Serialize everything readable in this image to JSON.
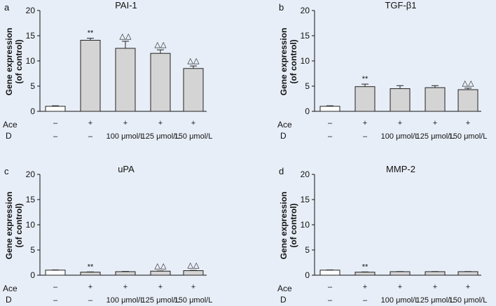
{
  "chart_data": [
    {
      "type": "bar",
      "panel": "a",
      "title": "PAI-1",
      "ylabel_lines": [
        "Gene expression",
        "(of control)"
      ],
      "ylim": [
        0,
        20
      ],
      "yticks": [
        "0",
        "5",
        "10",
        "15",
        "20"
      ],
      "values": [
        1.0,
        14.1,
        12.5,
        11.5,
        8.5
      ],
      "errors": [
        0.1,
        0.4,
        1.4,
        0.7,
        0.5
      ],
      "annotations": [
        "",
        "**",
        "△△",
        "△△",
        "△△"
      ],
      "conditions": {
        "ace_label": "Ace",
        "d_label": "D",
        "ace": [
          "–",
          "+",
          "+",
          "+",
          "+"
        ],
        "d": [
          "–",
          "–",
          "100 μmol/L",
          "125 μmol/L",
          "150 μmol/L"
        ]
      },
      "colors": {
        "control": "#ffffff",
        "treated": "#d4d4d4"
      }
    },
    {
      "type": "bar",
      "panel": "b",
      "title": "TGF-β1",
      "ylabel_lines": [
        "Gene expression",
        "(of control)"
      ],
      "ylim": [
        0,
        20
      ],
      "yticks": [
        "0",
        "5",
        "10",
        "15",
        "20"
      ],
      "values": [
        1.0,
        4.9,
        4.5,
        4.7,
        4.3
      ],
      "errors": [
        0.1,
        0.5,
        0.6,
        0.4,
        0.3
      ],
      "annotations": [
        "",
        "**",
        "",
        "",
        "△△"
      ],
      "conditions": {
        "ace_label": "Ace",
        "d_label": "D",
        "ace": [
          "–",
          "+",
          "+",
          "+",
          "+"
        ],
        "d": [
          "–",
          "–",
          "100 μmol/L",
          "125 μmol/L",
          "150 μmol/L"
        ]
      },
      "colors": {
        "control": "#ffffff",
        "treated": "#d4d4d4"
      }
    },
    {
      "type": "bar",
      "panel": "c",
      "title": "uPA",
      "ylabel_lines": [
        "Gene expression",
        "(of control)"
      ],
      "ylim": [
        0,
        20
      ],
      "yticks": [
        "0",
        "5",
        "10",
        "15",
        "20"
      ],
      "values": [
        1.0,
        0.6,
        0.7,
        0.8,
        0.9
      ],
      "errors": [
        0.05,
        0.05,
        0.05,
        0.05,
        0.05
      ],
      "annotations": [
        "",
        "**",
        "",
        "△△",
        "△△"
      ],
      "conditions": {
        "ace_label": "Ace",
        "d_label": "D",
        "ace": [
          "–",
          "+",
          "+",
          "+",
          "+"
        ],
        "d": [
          "–",
          "–",
          "100 μmol/L",
          "125 μmol/L",
          "150 μmol/L"
        ]
      },
      "colors": {
        "control": "#ffffff",
        "treated": "#d4d4d4"
      }
    },
    {
      "type": "bar",
      "panel": "d",
      "title": "MMP-2",
      "ylabel_lines": [
        "Gene expression",
        "(of control)"
      ],
      "ylim": [
        0,
        20
      ],
      "yticks": [
        "0",
        "5",
        "10",
        "15",
        "20"
      ],
      "values": [
        1.0,
        0.6,
        0.7,
        0.7,
        0.7
      ],
      "errors": [
        0.05,
        0.05,
        0.03,
        0.03,
        0.03
      ],
      "annotations": [
        "",
        "**",
        "",
        "",
        ""
      ],
      "conditions": {
        "ace_label": "Ace",
        "d_label": "D",
        "ace": [
          "–",
          "+",
          "+",
          "+",
          "+"
        ],
        "d": [
          "–",
          "–",
          "100 μmol/L",
          "125 μmol/L",
          "150 μmol/L"
        ]
      },
      "colors": {
        "control": "#ffffff",
        "treated": "#d4d4d4"
      }
    }
  ]
}
